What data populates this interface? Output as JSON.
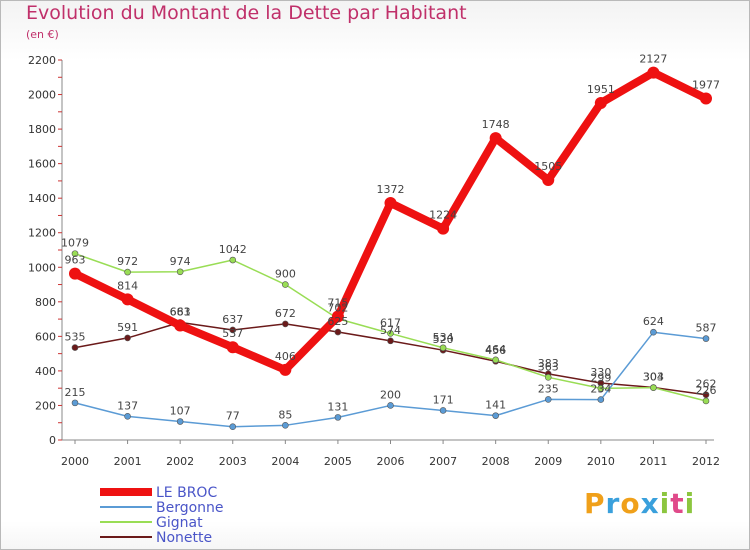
{
  "chart_data": {
    "type": "line",
    "title": "Evolution du Montant de la Dette par Habitant",
    "subtitle": "(en €)",
    "x": [
      "2000",
      "2001",
      "2002",
      "2003",
      "2004",
      "2005",
      "2006",
      "2007",
      "2008",
      "2009",
      "2010",
      "2011",
      "2012"
    ],
    "ylim": [
      0,
      2200
    ],
    "yticks": [
      0,
      200,
      400,
      600,
      800,
      1000,
      1200,
      1400,
      1600,
      1800,
      2000,
      2200
    ],
    "grid": false,
    "legend_position": "bottom-left",
    "series": [
      {
        "name": "Nonette",
        "color": "#6b1a1a",
        "values": [
          535,
          591,
          681,
          637,
          672,
          625,
          574,
          520,
          456,
          383,
          330,
          304,
          262
        ]
      },
      {
        "name": "Gignat",
        "color": "#99dd55",
        "values": [
          1079,
          972,
          974,
          1042,
          900,
          702,
          617,
          534,
          464,
          363,
          299,
          303,
          226
        ]
      },
      {
        "name": "Bergonne",
        "color": "#5b9bd5",
        "values": [
          215,
          137,
          107,
          77,
          85,
          131,
          200,
          171,
          141,
          235,
          234,
          624,
          587
        ]
      },
      {
        "name": "LE BROC",
        "color": "#ee1111",
        "values": [
          963,
          814,
          663,
          537,
          406,
          715,
          1372,
          1224,
          1748,
          1505,
          1951,
          2127,
          1977
        ]
      }
    ]
  },
  "logo": {
    "p": "P",
    "r": "r",
    "o": "o",
    "x": "x",
    "i": "i",
    "t": "t",
    "i2": "i"
  }
}
